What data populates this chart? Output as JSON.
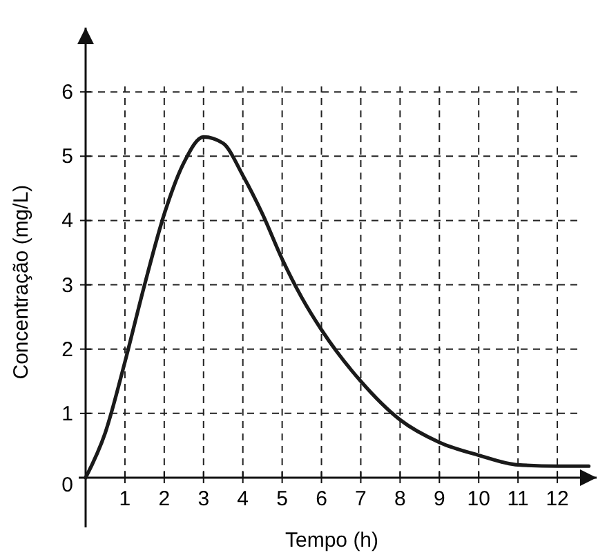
{
  "chart_data": {
    "type": "line",
    "xlabel": "Tempo (h)",
    "ylabel": "Concentração (mg/L)",
    "xlim": [
      0,
      13
    ],
    "ylim": [
      0,
      7
    ],
    "xticks": [
      1,
      2,
      3,
      4,
      5,
      6,
      7,
      8,
      9,
      10,
      11,
      12
    ],
    "yticks": [
      0,
      1,
      2,
      3,
      4,
      5,
      6
    ],
    "grid": true,
    "series": [
      {
        "color": "#1a1a1a",
        "x": [
          0,
          0.5,
          1,
          1.5,
          2,
          2.5,
          3,
          3.5,
          4,
          4.5,
          5,
          5.5,
          6,
          7,
          8,
          9,
          10,
          11,
          12,
          12.8
        ],
        "values": [
          0,
          0.7,
          1.8,
          3.0,
          4.1,
          4.9,
          5.3,
          5.2,
          4.7,
          4.1,
          3.4,
          2.8,
          2.3,
          1.5,
          0.9,
          0.55,
          0.35,
          0.2,
          0.18,
          0.18
        ]
      }
    ]
  }
}
